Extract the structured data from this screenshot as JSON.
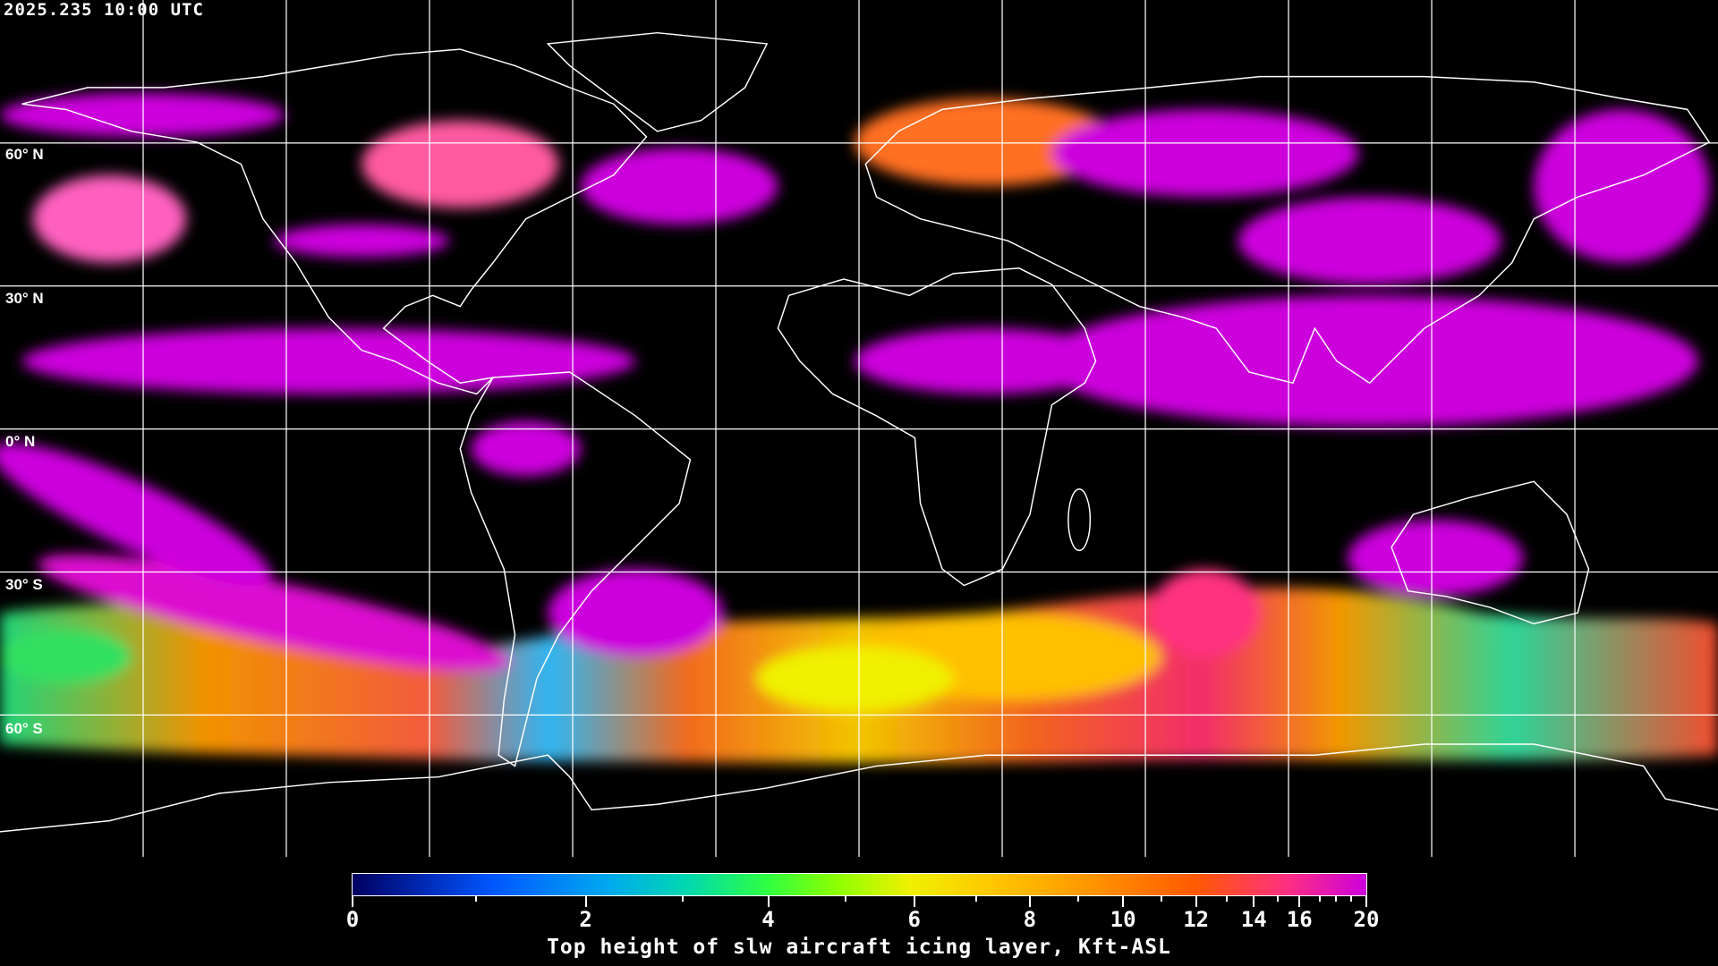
{
  "header": {
    "timestamp": "2025.235 10:00 UTC"
  },
  "map": {
    "latitude_labels": [
      "60° N",
      "30° N",
      "0° N",
      "30° S",
      "60° S"
    ],
    "colors": {
      "background": "#000000",
      "coastline": "#ffffff",
      "grid": "#ffffff",
      "high_icing": "#cc00dd"
    }
  },
  "colorbar": {
    "title": "Top height of slw aircraft icing layer, Kft-ASL",
    "tick_labels": [
      "0",
      "2",
      "4",
      "6",
      "8",
      "10",
      "12",
      "14",
      "16",
      "20"
    ],
    "minor_ticks": [
      1,
      3,
      5,
      7,
      9,
      11,
      13,
      15,
      17,
      18,
      19
    ],
    "range": [
      0,
      20
    ],
    "colors": [
      "#000060",
      "#0058ff",
      "#00a8f0",
      "#30ff40",
      "#f0f000",
      "#ff9a00",
      "#ff5a00",
      "#cc00dd"
    ]
  }
}
